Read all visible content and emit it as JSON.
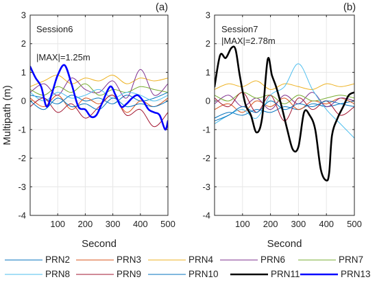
{
  "chart_data": [
    {
      "type": "line",
      "panel_label": "(a)",
      "annotations": [
        "Session6",
        "|MAX|=1.25m"
      ],
      "xlabel": "Second",
      "ylabel": "Multipath (m)",
      "xlim": [
        0,
        500
      ],
      "ylim": [
        -4,
        3
      ],
      "xticks": [
        "100",
        "200",
        "300",
        "400",
        "500"
      ],
      "yticks": [
        "3",
        "2",
        "1",
        "0",
        "-1",
        "-2",
        "-3",
        "-4"
      ],
      "grid": true,
      "series": [
        {
          "name": "PRN2",
          "color": "#0072BD",
          "x": [
            0,
            50,
            100,
            150,
            200,
            250,
            300,
            350,
            400,
            450,
            500
          ],
          "y": [
            0.2,
            0.1,
            -0.1,
            0.2,
            0.0,
            0.1,
            -0.1,
            0.2,
            0.0,
            0.1,
            0.3
          ]
        },
        {
          "name": "PRN3",
          "color": "#D95319",
          "x": [
            0,
            50,
            100,
            150,
            200,
            250,
            300,
            350,
            400,
            450,
            500
          ],
          "y": [
            0.1,
            -0.2,
            0.2,
            -0.3,
            0.1,
            -0.1,
            0.2,
            -0.4,
            0.0,
            -0.2,
            0.1
          ]
        },
        {
          "name": "PRN4",
          "color": "#EDB120",
          "x": [
            0,
            50,
            100,
            150,
            200,
            250,
            300,
            350,
            400,
            450,
            500
          ],
          "y": [
            0.5,
            0.7,
            0.9,
            0.6,
            0.8,
            0.7,
            0.9,
            0.6,
            0.8,
            0.7,
            0.8
          ]
        },
        {
          "name": "PRN6",
          "color": "#7E2F8E",
          "x": [
            0,
            50,
            100,
            150,
            200,
            250,
            300,
            350,
            400,
            450,
            500
          ],
          "y": [
            0.3,
            0.6,
            0.2,
            0.8,
            0.4,
            0.3,
            0.7,
            0.1,
            1.1,
            0.2,
            0.6
          ]
        },
        {
          "name": "PRN7",
          "color": "#77AC30",
          "x": [
            0,
            50,
            100,
            150,
            200,
            250,
            300,
            350,
            400,
            450,
            500
          ],
          "y": [
            0.4,
            0.2,
            0.5,
            0.3,
            0.6,
            0.2,
            0.4,
            0.3,
            0.5,
            0.4,
            0.3
          ]
        },
        {
          "name": "PRN8",
          "color": "#4DBEEE",
          "x": [
            0,
            50,
            100,
            150,
            200,
            250,
            300,
            350,
            400,
            450,
            500
          ],
          "y": [
            0.3,
            0.0,
            0.3,
            0.1,
            0.2,
            0.4,
            0.1,
            0.3,
            0.2,
            0.0,
            0.2
          ]
        },
        {
          "name": "PRN9",
          "color": "#A2142F",
          "x": [
            0,
            50,
            100,
            150,
            200,
            250,
            300,
            350,
            400,
            450,
            500
          ],
          "y": [
            -0.2,
            0.1,
            -0.4,
            -0.1,
            -0.6,
            -0.2,
            0.2,
            -0.5,
            -0.3,
            -0.9,
            -0.4
          ]
        },
        {
          "name": "PRN10",
          "color": "#0072BD",
          "x": [
            0,
            50,
            100,
            150,
            200,
            250,
            300,
            350,
            400,
            450,
            500
          ],
          "y": [
            0.0,
            -0.3,
            0.1,
            -0.2,
            -0.1,
            -0.3,
            0.1,
            -0.2,
            -0.1,
            -0.2,
            0.0
          ]
        },
        {
          "name": "PRN13",
          "color": "#0000FF",
          "x": [
            0,
            20,
            40,
            60,
            80,
            100,
            125,
            150,
            175,
            200,
            220,
            240,
            260,
            290,
            310,
            330,
            350,
            370,
            390,
            410,
            430,
            450,
            470,
            490,
            500
          ],
          "y": [
            1.2,
            0.8,
            0.5,
            -0.2,
            0.3,
            0.9,
            1.25,
            0.6,
            -0.2,
            -0.3,
            -0.55,
            -0.5,
            -0.1,
            0.5,
            0.2,
            -0.2,
            -0.1,
            0.1,
            0.2,
            0.0,
            -0.3,
            -0.4,
            -0.5,
            -1.0,
            -0.7
          ]
        }
      ]
    },
    {
      "type": "line",
      "panel_label": "(b)",
      "annotations": [
        "Session7",
        "|MAX|=2.78m"
      ],
      "xlabel": "Second",
      "ylabel": "",
      "xlim": [
        0,
        500
      ],
      "ylim": [
        -4,
        3
      ],
      "xticks": [
        "100",
        "200",
        "300",
        "400",
        "500"
      ],
      "yticks": [
        "3",
        "2",
        "1",
        "0",
        "-1",
        "-2",
        "-3",
        "-4"
      ],
      "grid": true,
      "series": [
        {
          "name": "PRN2",
          "color": "#0072BD",
          "x": [
            0,
            50,
            100,
            150,
            200,
            250,
            300,
            350,
            400,
            450,
            500
          ],
          "y": [
            -0.6,
            -0.4,
            -0.5,
            -0.3,
            -0.4,
            -0.2,
            -0.3,
            -0.1,
            -0.2,
            -0.1,
            0.0
          ]
        },
        {
          "name": "PRN3",
          "color": "#D95319",
          "x": [
            0,
            50,
            100,
            150,
            200,
            250,
            300,
            350,
            400,
            450,
            500
          ],
          "y": [
            -0.3,
            -0.1,
            -0.4,
            0.0,
            -0.2,
            0.1,
            -0.3,
            0.0,
            -0.1,
            0.1,
            -0.1
          ]
        },
        {
          "name": "PRN4",
          "color": "#EDB120",
          "x": [
            0,
            50,
            100,
            150,
            200,
            250,
            300,
            350,
            400,
            450,
            500
          ],
          "y": [
            0.4,
            0.6,
            0.5,
            0.7,
            0.4,
            0.6,
            0.5,
            0.4,
            0.6,
            0.5,
            0.6
          ]
        },
        {
          "name": "PRN6",
          "color": "#7E2F8E",
          "x": [
            0,
            50,
            100,
            150,
            200,
            250,
            300,
            350,
            400,
            450,
            500
          ],
          "y": [
            -0.1,
            0.2,
            -0.2,
            0.1,
            -0.3,
            0.2,
            -0.1,
            0.3,
            -0.2,
            0.1,
            0.0
          ]
        },
        {
          "name": "PRN7",
          "color": "#77AC30",
          "x": [
            0,
            50,
            100,
            150,
            200,
            250,
            300,
            350,
            400,
            450,
            500
          ],
          "y": [
            0.2,
            0.0,
            0.3,
            0.1,
            0.2,
            -0.1,
            0.2,
            0.0,
            0.1,
            0.2,
            0.1
          ]
        },
        {
          "name": "PRN8",
          "color": "#4DBEEE",
          "x": [
            0,
            50,
            100,
            150,
            200,
            250,
            300,
            350,
            400,
            450,
            500
          ],
          "y": [
            -0.8,
            -0.5,
            -0.3,
            -0.6,
            0.2,
            0.5,
            1.3,
            0.4,
            -0.3,
            -0.8,
            -1.3
          ]
        },
        {
          "name": "PRN9",
          "color": "#A2142F",
          "x": [
            0,
            50,
            100,
            150,
            200,
            250,
            300,
            350,
            400,
            450,
            500
          ],
          "y": [
            0.1,
            -0.2,
            0.3,
            -0.4,
            0.2,
            -0.7,
            0.1,
            -0.3,
            0.0,
            -0.5,
            -0.2
          ]
        },
        {
          "name": "PRN10",
          "color": "#0072BD",
          "x": [
            0,
            50,
            100,
            150,
            200,
            250,
            300,
            350,
            400,
            450,
            500
          ],
          "y": [
            -0.7,
            -0.5,
            -0.2,
            -0.4,
            0.0,
            -0.3,
            -0.1,
            -0.2,
            0.0,
            -0.1,
            -0.2
          ]
        },
        {
          "name": "PRN11",
          "color": "#000000",
          "x": [
            0,
            20,
            40,
            60,
            75,
            90,
            110,
            130,
            150,
            170,
            190,
            205,
            220,
            240,
            260,
            280,
            300,
            320,
            340,
            360,
            380,
            400,
            410,
            420,
            440,
            460,
            480,
            500
          ],
          "y": [
            0.5,
            1.6,
            1.5,
            1.85,
            1.8,
            0.9,
            -0.1,
            -0.5,
            -1.1,
            -0.6,
            1.45,
            0.9,
            0.5,
            -0.2,
            -1.0,
            -1.7,
            -1.6,
            -0.4,
            -0.5,
            -1.0,
            -2.4,
            -2.78,
            -2.5,
            -1.2,
            -0.6,
            -0.2,
            0.2,
            0.3
          ]
        }
      ]
    }
  ],
  "legend": {
    "rows": [
      [
        "PRN2",
        "PRN3",
        "PRN4",
        "PRN6",
        "PRN7"
      ],
      [
        "PRN8",
        "PRN9",
        "PRN10",
        "PRN11",
        "PRN13"
      ]
    ],
    "items": {
      "PRN2": {
        "label": "PRN2",
        "color": "#0072BD",
        "width": 1
      },
      "PRN3": {
        "label": "PRN3",
        "color": "#D95319",
        "width": 1
      },
      "PRN4": {
        "label": "PRN4",
        "color": "#EDB120",
        "width": 1
      },
      "PRN6": {
        "label": "PRN6",
        "color": "#7E2F8E",
        "width": 1
      },
      "PRN7": {
        "label": "PRN7",
        "color": "#77AC30",
        "width": 1
      },
      "PRN8": {
        "label": "PRN8",
        "color": "#4DBEEE",
        "width": 1
      },
      "PRN9": {
        "label": "PRN9",
        "color": "#A2142F",
        "width": 1
      },
      "PRN10": {
        "label": "PRN10",
        "color": "#0072BD",
        "width": 1
      },
      "PRN11": {
        "label": "PRN11",
        "color": "#000000",
        "width": 2.5
      },
      "PRN13": {
        "label": "PRN13",
        "color": "#0000FF",
        "width": 2.5
      }
    }
  }
}
